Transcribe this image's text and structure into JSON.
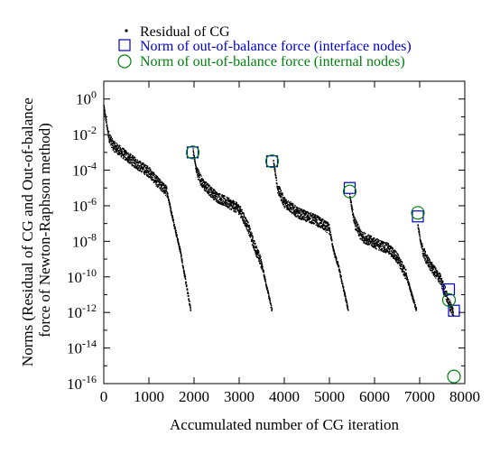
{
  "chart_data": {
    "type": "scatter",
    "xlabel": "Accumulated number of CG iteration",
    "ylabel_lines": [
      "Norms (Residual of CG and Out-of-balance",
      "force of Newton-Raphson method)"
    ],
    "xlim": [
      0,
      8000
    ],
    "ylim_log10": [
      -16,
      1
    ],
    "y_scale": "log",
    "x_ticks": [
      0,
      1000,
      2000,
      3000,
      4000,
      5000,
      6000,
      7000,
      8000
    ],
    "y_tick_exponents": [
      0,
      -2,
      -4,
      -6,
      -8,
      -10,
      -12,
      -14,
      -16
    ],
    "y_tick_base": "10",
    "legend_position": "top",
    "colors": {
      "cg": "#000000",
      "interface": "#0000c8",
      "internal": "#00800f"
    },
    "series": [
      {
        "name": "Residual of CG",
        "marker": "dot",
        "segments": [
          {
            "x": [
              0,
              100,
              200,
              400,
              700,
              1000,
              1200,
              1400,
              1500,
              1700,
              1930
            ],
            "log10_y": [
              -0.4,
              -2.0,
              -2.6,
              -3.0,
              -3.6,
              -4.1,
              -4.7,
              -5.2,
              -6.4,
              -8.6,
              -11.9
            ]
          },
          {
            "x": [
              1980,
              2050,
              2200,
              2500,
              2800,
              3000,
              3200,
              3300,
              3500,
              3730
            ],
            "log10_y": [
              -2.9,
              -4.0,
              -4.8,
              -5.5,
              -5.9,
              -6.2,
              -7.2,
              -8.0,
              -9.3,
              -11.9
            ]
          },
          {
            "x": [
              3760,
              3850,
              4000,
              4300,
              4700,
              5000,
              5100,
              5200,
              5420
            ],
            "log10_y": [
              -3.5,
              -5.0,
              -5.8,
              -6.4,
              -6.8,
              -7.3,
              -8.6,
              -9.4,
              -11.9
            ]
          },
          {
            "x": [
              5450,
              5550,
              5700,
              6000,
              6300,
              6500,
              6600,
              6700,
              6930
            ],
            "log10_y": [
              -5.4,
              -6.9,
              -7.7,
              -8.1,
              -8.4,
              -8.9,
              -9.4,
              -9.9,
              -11.9
            ]
          },
          {
            "x": [
              6960,
              7050,
              7150,
              7300,
              7450,
              7560,
              7650,
              7750
            ],
            "log10_y": [
              -7.1,
              -8.4,
              -9.0,
              -9.6,
              -10.1,
              -10.8,
              -11.5,
              -12.0
            ]
          }
        ]
      },
      {
        "name": "Norm of out-of-balance force (interface nodes)",
        "marker": "square",
        "x": [
          1970,
          3730,
          5450,
          6960,
          7650,
          7760
        ],
        "log10_y": [
          -3.0,
          -3.5,
          -5.0,
          -6.6,
          -10.7,
          -11.9
        ]
      },
      {
        "name": "Norm of out-of-balance force (internal nodes)",
        "marker": "circle",
        "x": [
          1970,
          3730,
          5450,
          6960,
          7650,
          7760
        ],
        "log10_y": [
          -3.0,
          -3.5,
          -5.2,
          -6.4,
          -11.3,
          -15.6
        ]
      }
    ]
  }
}
